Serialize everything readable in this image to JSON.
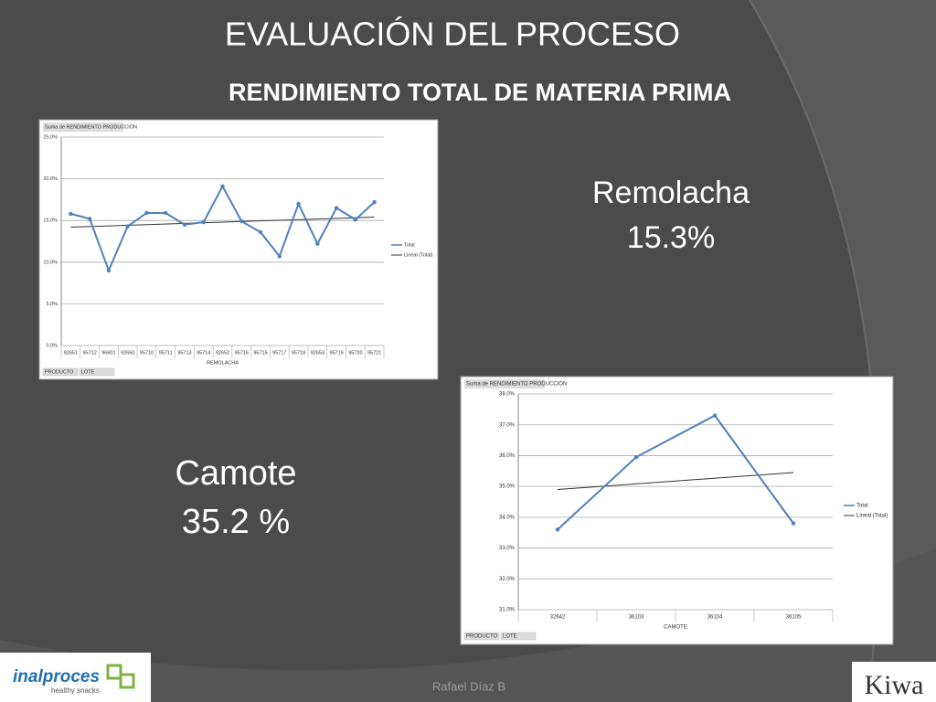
{
  "slide": {
    "title": "EVALUACIÓN DEL PROCESO",
    "subtitle": "RENDIMIENTO  TOTAL DE MATERIA PRIMA",
    "labels": [
      {
        "name": "Remolacha",
        "value": "15.3%"
      },
      {
        "name": "Camote",
        "value": "35.2 %"
      }
    ],
    "footer": "Rafael Díaz B",
    "logo_left": "inalproces",
    "logo_left_tagline": "healthy snacks",
    "logo_right": "Kiwa"
  },
  "chart_data": [
    {
      "type": "line",
      "title": "Suma de RENDIMIENTO PRODUCCIÓN",
      "x_label": "REMOLACHA",
      "filters": [
        "PRODUCTO",
        "LOTE"
      ],
      "categories": [
        "92651",
        "95712",
        "96601",
        "92650",
        "95710",
        "95711",
        "95713",
        "95714",
        "92652",
        "95716",
        "95715",
        "95717",
        "95718",
        "92653",
        "95719",
        "95720",
        "95721"
      ],
      "series": [
        {
          "name": "Total",
          "color": "#4f81bd",
          "values": [
            15.8,
            15.2,
            9.0,
            14.3,
            15.9,
            15.9,
            14.5,
            14.8,
            19.1,
            14.9,
            13.6,
            10.7,
            17.0,
            12.2,
            16.5,
            15.1,
            17.2
          ]
        }
      ],
      "trendline": {
        "name": "Lineal (Total)",
        "color": "#333333",
        "values": [
          14.2,
          15.4
        ]
      },
      "ylim": [
        0,
        25
      ],
      "yticks": [
        {
          "value": 0,
          "label": "0.0%"
        },
        {
          "value": 5,
          "label": "5.0%"
        },
        {
          "value": 10,
          "label": "10.0%"
        },
        {
          "value": 15,
          "label": "15.0%"
        },
        {
          "value": 20,
          "label": "20.0%"
        },
        {
          "value": 25,
          "label": "25.0%"
        }
      ],
      "grid": true
    },
    {
      "type": "line",
      "title": "Suma de RENDIMIENTO PRODUCCIÓN",
      "x_label": "CAMOTE",
      "filters": [
        "PRODUCTO",
        "LOTE"
      ],
      "categories": [
        "32642",
        "36103",
        "36104",
        "36105"
      ],
      "series": [
        {
          "name": "Total",
          "color": "#4f81bd",
          "values": [
            33.6,
            35.95,
            37.3,
            33.8
          ]
        }
      ],
      "trendline": {
        "name": "Lineal (Total)",
        "color": "#333333",
        "values": [
          34.9,
          35.45
        ]
      },
      "ylim": [
        31,
        38
      ],
      "yticks": [
        {
          "value": 31,
          "label": "31.0%"
        },
        {
          "value": 32,
          "label": "32.0%"
        },
        {
          "value": 33,
          "label": "33.0%"
        },
        {
          "value": 34,
          "label": "34.0%"
        },
        {
          "value": 35,
          "label": "35.0%"
        },
        {
          "value": 36,
          "label": "36.0%"
        },
        {
          "value": 37,
          "label": "37.0%"
        },
        {
          "value": 38,
          "label": "38.0%"
        }
      ],
      "grid": true
    }
  ]
}
